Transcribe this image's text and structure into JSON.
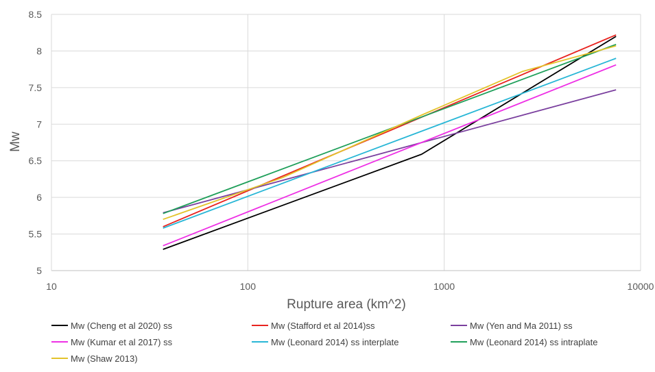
{
  "chart_data": {
    "type": "line",
    "xlabel": "Rupture area (km^2)",
    "ylabel": "Mw",
    "xscale": "log",
    "xlim": [
      10,
      10000
    ],
    "ylim": [
      5,
      8.5
    ],
    "x_ticks": [
      10,
      100,
      1000,
      10000
    ],
    "x_tick_labels": [
      "10",
      "100",
      "1000",
      "10000"
    ],
    "y_ticks": [
      5,
      5.5,
      6,
      6.5,
      7,
      7.5,
      8,
      8.5
    ],
    "y_tick_labels": [
      "5",
      "5.5",
      "6",
      "6.5",
      "7",
      "7.5",
      "8",
      "8.5"
    ],
    "grid": true,
    "legend_position": "bottom",
    "series": [
      {
        "name": "Mw (Cheng et al 2020) ss",
        "color": "#000000",
        "points": [
          [
            37,
            5.29
          ],
          [
            768,
            6.59
          ],
          [
            7500,
            8.2
          ]
        ]
      },
      {
        "name": "Mw (Stafford et al 2014)ss",
        "color": "#e8231f",
        "points": [
          [
            37,
            5.6
          ],
          [
            7500,
            8.22
          ]
        ]
      },
      {
        "name": "Mw (Yen and Ma 2011) ss",
        "color": "#7a3f9e",
        "points": [
          [
            37,
            5.79
          ],
          [
            7500,
            7.47
          ]
        ]
      },
      {
        "name": "Mw (Kumar et al 2017) ss",
        "color": "#ee2fe5",
        "points": [
          [
            37,
            5.34
          ],
          [
            7500,
            7.81
          ]
        ]
      },
      {
        "name": "Mw (Leonard 2014) ss interplate",
        "color": "#27b6d6",
        "points": [
          [
            37,
            5.58
          ],
          [
            7500,
            7.9
          ]
        ]
      },
      {
        "name": "Mw (Leonard 2014) ss intraplate",
        "color": "#1f9f5a",
        "points": [
          [
            37,
            5.78
          ],
          [
            7500,
            8.09
          ]
        ]
      },
      {
        "name": "Mw (Shaw 2013)",
        "color": "#e3c32a",
        "points": [
          [
            37,
            5.7
          ],
          [
            150,
            6.27
          ],
          [
            760,
            7.12
          ],
          [
            2500,
            7.72
          ],
          [
            7500,
            8.07
          ]
        ]
      }
    ]
  }
}
